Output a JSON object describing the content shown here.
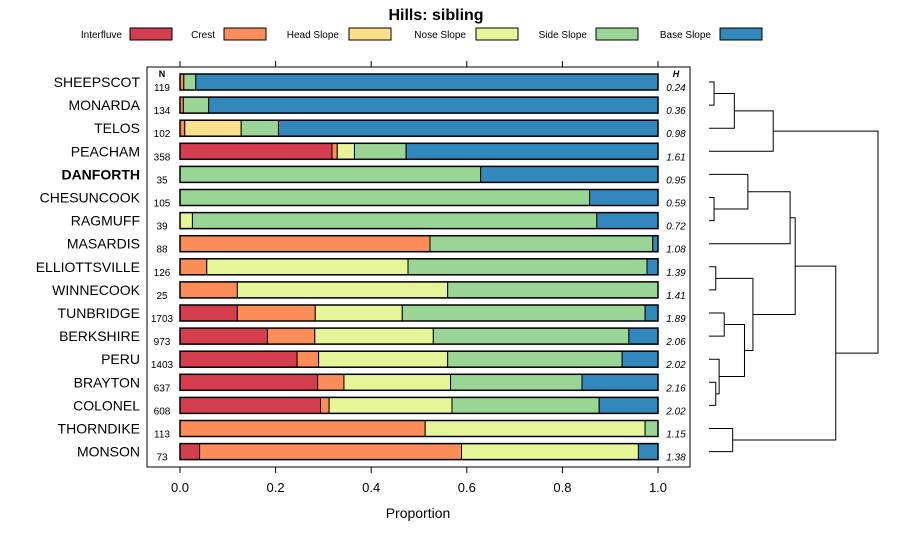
{
  "chart_data": {
    "type": "stacked-horizontal-bar",
    "title": "Hills: sibling",
    "xlabel": "Proportion",
    "xlim": [
      0,
      1
    ],
    "xticks": [
      0.0,
      0.2,
      0.4,
      0.6,
      0.8,
      1.0
    ],
    "xtick_labels": [
      "0.0",
      "0.2",
      "0.4",
      "0.6",
      "0.8",
      "1.0"
    ],
    "n_header": "N",
    "h_header": "H",
    "highlighted": "DANFORTH",
    "legend": [
      {
        "name": "Interfluve",
        "color": "#d53e4f"
      },
      {
        "name": "Crest",
        "color": "#fc8d59"
      },
      {
        "name": "Head Slope",
        "color": "#fee08b"
      },
      {
        "name": "Nose Slope",
        "color": "#e6f598"
      },
      {
        "name": "Side Slope",
        "color": "#99d594"
      },
      {
        "name": "Base Slope",
        "color": "#3288bd"
      }
    ],
    "rows": [
      {
        "name": "SHEEPSCOT",
        "n": "119",
        "h": "0.24",
        "values": [
          0.0,
          0.008,
          0.0,
          0.0,
          0.025,
          0.967
        ]
      },
      {
        "name": "MONARDA",
        "n": "134",
        "h": "0.36",
        "values": [
          0.0,
          0.007,
          0.0,
          0.0,
          0.053,
          0.94
        ]
      },
      {
        "name": "TELOS",
        "n": "102",
        "h": "0.98",
        "values": [
          0.0,
          0.01,
          0.118,
          0.0,
          0.078,
          0.794
        ]
      },
      {
        "name": "PEACHAM",
        "n": "358",
        "h": "1.61",
        "values": [
          0.318,
          0.011,
          0.0,
          0.036,
          0.108,
          0.527
        ]
      },
      {
        "name": "DANFORTH",
        "n": "35",
        "h": "0.95",
        "values": [
          0.0,
          0.0,
          0.0,
          0.0,
          0.629,
          0.371
        ]
      },
      {
        "name": "CHESUNCOOK",
        "n": "105",
        "h": "0.59",
        "values": [
          0.0,
          0.0,
          0.0,
          0.0,
          0.857,
          0.143
        ]
      },
      {
        "name": "RAGMUFF",
        "n": "39",
        "h": "0.72",
        "values": [
          0.0,
          0.0,
          0.0,
          0.026,
          0.846,
          0.128
        ]
      },
      {
        "name": "MASARDIS",
        "n": "88",
        "h": "1.08",
        "values": [
          0.0,
          0.523,
          0.0,
          0.0,
          0.466,
          0.011
        ]
      },
      {
        "name": "ELLIOTTSVILLE",
        "n": "126",
        "h": "1.39",
        "values": [
          0.0,
          0.056,
          0.0,
          0.421,
          0.5,
          0.023
        ]
      },
      {
        "name": "WINNECOOK",
        "n": "25",
        "h": "1.41",
        "values": [
          0.0,
          0.12,
          0.0,
          0.44,
          0.44,
          0.0
        ]
      },
      {
        "name": "TUNBRIDGE",
        "n": "1703",
        "h": "1.89",
        "values": [
          0.12,
          0.163,
          0.0,
          0.182,
          0.508,
          0.027
        ]
      },
      {
        "name": "BERKSHIRE",
        "n": "973",
        "h": "2.06",
        "values": [
          0.183,
          0.099,
          0.0,
          0.248,
          0.409,
          0.061
        ]
      },
      {
        "name": "PERU",
        "n": "1403",
        "h": "2.02",
        "values": [
          0.245,
          0.045,
          0.0,
          0.27,
          0.365,
          0.075
        ]
      },
      {
        "name": "BRAYTON",
        "n": "637",
        "h": "2.16",
        "values": [
          0.288,
          0.055,
          0.0,
          0.223,
          0.275,
          0.159
        ]
      },
      {
        "name": "COLONEL",
        "n": "608",
        "h": "2.02",
        "values": [
          0.294,
          0.018,
          0.0,
          0.257,
          0.308,
          0.123
        ]
      },
      {
        "name": "THORNDIKE",
        "n": "113",
        "h": "1.15",
        "values": [
          0.0,
          0.513,
          0.0,
          0.46,
          0.027,
          0.0
        ]
      },
      {
        "name": "MONSON",
        "n": "73",
        "h": "1.38",
        "values": [
          0.041,
          0.548,
          0.0,
          0.37,
          0.0,
          0.041
        ]
      }
    ],
    "dendrogram": {
      "leaf_order": [
        "SHEEPSCOT",
        "MONARDA",
        "TELOS",
        "PEACHAM",
        "DANFORTH",
        "CHESUNCOOK",
        "RAGMUFF",
        "MASARDIS",
        "ELLIOTTSVILLE",
        "WINNECOOK",
        "TUNBRIDGE",
        "BERKSHIRE",
        "PERU",
        "BRAYTON",
        "COLONEL",
        "THORNDIKE",
        "MONSON"
      ],
      "merges": [
        {
          "a": [
            "leaf",
            0
          ],
          "b": [
            "leaf",
            1
          ],
          "height": 0.03
        },
        {
          "a": [
            "node",
            0
          ],
          "b": [
            "leaf",
            2
          ],
          "height": 0.15
        },
        {
          "a": [
            "node",
            1
          ],
          "b": [
            "leaf",
            3
          ],
          "height": 0.38
        },
        {
          "a": [
            "leaf",
            5
          ],
          "b": [
            "leaf",
            6
          ],
          "height": 0.03
        },
        {
          "a": [
            "leaf",
            4
          ],
          "b": [
            "node",
            3
          ],
          "height": 0.23
        },
        {
          "a": [
            "leaf",
            8
          ],
          "b": [
            "leaf",
            9
          ],
          "height": 0.04
        },
        {
          "a": [
            "leaf",
            14
          ],
          "b": [
            "leaf",
            13
          ],
          "height": 0.04
        },
        {
          "a": [
            "leaf",
            12
          ],
          "b": [
            "node",
            6
          ],
          "height": 0.06
        },
        {
          "a": [
            "leaf",
            10
          ],
          "b": [
            "leaf",
            11
          ],
          "height": 0.09
        },
        {
          "a": [
            "node",
            8
          ],
          "b": [
            "node",
            7
          ],
          "height": 0.21
        },
        {
          "a": [
            "node",
            5
          ],
          "b": [
            "node",
            9
          ],
          "height": 0.26
        },
        {
          "a": [
            "node",
            4
          ],
          "b": [
            "leaf",
            7
          ],
          "height": 0.48
        },
        {
          "a": [
            "node",
            11
          ],
          "b": [
            "node",
            10
          ],
          "height": 0.51
        },
        {
          "a": [
            "leaf",
            15
          ],
          "b": [
            "leaf",
            16
          ],
          "height": 0.14
        },
        {
          "a": [
            "node",
            12
          ],
          "b": [
            "node",
            13
          ],
          "height": 0.75
        },
        {
          "a": [
            "node",
            2
          ],
          "b": [
            "node",
            14
          ],
          "height": 1.0
        }
      ]
    }
  }
}
